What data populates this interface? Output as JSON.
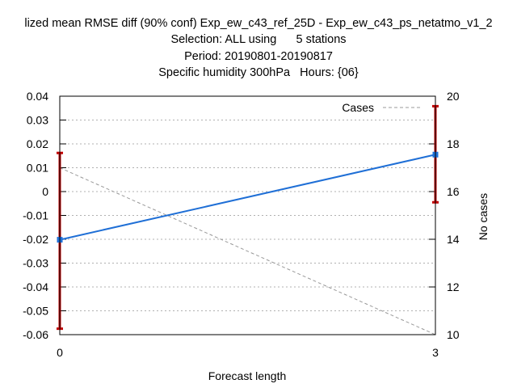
{
  "chart_data": {
    "type": "line",
    "title_lines": [
      "lized mean RMSE diff (90% conf) Exp_ew_c43_ref_25D - Exp_ew_c43_ps_netatmo_v1_2",
      "Selection: ALL using      5 stations",
      "Period: 20190801-20190817",
      "Specific humidity 300hPa   Hours: {06}"
    ],
    "xlabel": "Forecast length",
    "ylabel": "",
    "y2label": "No cases",
    "x": [
      0,
      3
    ],
    "xlim": [
      0,
      3
    ],
    "xticks": [
      "0",
      "3"
    ],
    "ylim": [
      -0.06,
      0.04
    ],
    "yticks": [
      "0.04",
      "0.03",
      "0.02",
      "0.01",
      "0",
      "-0.01",
      "-0.02",
      "-0.03",
      "-0.04",
      "-0.05",
      "-0.06"
    ],
    "y2lim": [
      10,
      20
    ],
    "y2ticks": [
      "20",
      "18",
      "16",
      "14",
      "12",
      "10"
    ],
    "grid": true,
    "legend_position": "top-right",
    "series": [
      {
        "axis": "y",
        "values": [
          -0.0202,
          0.0155
        ],
        "error_low": [
          -0.0575,
          -0.0045
        ],
        "error_high": [
          0.0162,
          0.0358
        ],
        "color": "#1f6fd6",
        "errorbar_color": "#c00000"
      },
      {
        "name": "Cases",
        "axis": "y2",
        "values": [
          17,
          10
        ],
        "style": "dashed",
        "color": "#999999"
      }
    ]
  }
}
